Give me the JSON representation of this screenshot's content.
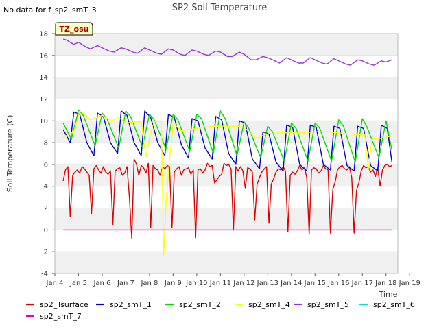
{
  "chart_data": {
    "type": "line",
    "title": "SP2 Soil Temperature",
    "no_data_note": "No data for f_sp2_smT_3",
    "badge": "TZ_osu",
    "xlabel": "Time",
    "ylabel": "Soil Temperature (C)",
    "xlim": [
      4.5,
      19
    ],
    "ylim": [
      -4,
      18
    ],
    "x_ticks": [
      {
        "v": 4.5,
        "label": "Jan 4"
      },
      {
        "v": 5.5,
        "label": "Jan 5"
      },
      {
        "v": 6.5,
        "label": "Jan 6"
      },
      {
        "v": 7.5,
        "label": "Jan 7"
      },
      {
        "v": 8.5,
        "label": "Jan 8"
      },
      {
        "v": 9.5,
        "label": "Jan 9"
      },
      {
        "v": 10.5,
        "label": "Jan 10"
      },
      {
        "v": 11.5,
        "label": "Jan 11"
      },
      {
        "v": 12.5,
        "label": "Jan 12"
      },
      {
        "v": 13.5,
        "label": "Jan 13"
      },
      {
        "v": 14.5,
        "label": "Jan 14"
      },
      {
        "v": 15.5,
        "label": "Jan 15"
      },
      {
        "v": 16.5,
        "label": "Jan 16"
      },
      {
        "v": 17.5,
        "label": "Jan 17"
      },
      {
        "v": 18.5,
        "label": "Jan 18"
      },
      {
        "v": 19.5,
        "label": "Jan 19"
      }
    ],
    "y_ticks": [
      -4,
      -2,
      0,
      2,
      4,
      6,
      8,
      10,
      12,
      14,
      16,
      18
    ],
    "grid": "horizontal bands",
    "legend_position": "bottom",
    "series": [
      {
        "name": "sp2_Tsurface",
        "color": "#dd0000",
        "x": [
          4.85,
          4.95,
          5.05,
          5.15,
          5.25,
          5.35,
          5.45,
          5.55,
          5.65,
          5.75,
          5.85,
          5.95,
          6.05,
          6.15,
          6.25,
          6.35,
          6.45,
          6.55,
          6.65,
          6.75,
          6.85,
          6.95,
          7.05,
          7.15,
          7.25,
          7.35,
          7.45,
          7.55,
          7.65,
          7.75,
          7.85,
          7.95,
          8.05,
          8.15,
          8.25,
          8.35,
          8.45,
          8.55,
          8.65,
          8.75,
          8.85,
          8.95,
          9.05,
          9.15,
          9.25,
          9.35,
          9.45,
          9.55,
          9.65,
          9.75,
          9.85,
          9.95,
          10.05,
          10.15,
          10.25,
          10.35,
          10.45,
          10.55,
          10.65,
          10.75,
          10.85,
          10.95,
          11.05,
          11.15,
          11.25,
          11.35,
          11.45,
          11.55,
          11.65,
          11.75,
          11.85,
          11.95,
          12.05,
          12.15,
          12.25,
          12.35,
          12.45,
          12.55,
          12.65,
          12.75,
          12.85,
          12.95,
          13.05,
          13.15,
          13.25,
          13.35,
          13.45,
          13.55,
          13.65,
          13.75,
          13.85,
          13.95,
          14.05,
          14.15,
          14.25,
          14.35,
          14.45,
          14.55,
          14.65,
          14.75,
          14.85,
          14.95,
          15.05,
          15.15,
          15.25,
          15.35,
          15.45,
          15.55,
          15.65,
          15.75,
          15.85,
          15.95,
          16.05,
          16.15,
          16.25,
          16.35,
          16.45,
          16.55,
          16.65,
          16.75,
          16.85,
          16.95,
          17.05,
          17.15,
          17.25,
          17.35,
          17.45,
          17.55,
          17.65,
          17.75,
          17.85,
          17.95,
          18.05,
          18.15,
          18.25,
          18.35,
          18.45,
          18.55,
          18.65,
          18.75
        ],
        "values": [
          4.5,
          5.5,
          5.8,
          1.2,
          5.0,
          5.3,
          5.5,
          5.2,
          5.8,
          5.6,
          5.3,
          5.0,
          1.5,
          5.6,
          5.9,
          5.5,
          5.2,
          5.8,
          5.3,
          5.1,
          5.4,
          0.5,
          5.4,
          5.6,
          5.7,
          5.0,
          5.2,
          5.8,
          3.0,
          -0.8,
          6.5,
          6.0,
          5.0,
          5.9,
          5.7,
          5.2,
          6.1,
          0.2,
          5.9,
          5.6,
          5.5,
          5.0,
          5.8,
          5.6,
          5.9,
          5.8,
          0.2,
          5.3,
          5.6,
          5.8,
          5.0,
          5.5,
          5.6,
          5.7,
          5.1,
          5.5,
          -0.7,
          5.5,
          5.6,
          5.2,
          5.5,
          6.1,
          5.8,
          5.9,
          4.3,
          4.6,
          4.9,
          5.1,
          6.1,
          5.9,
          6.0,
          5.6,
          0.0,
          5.8,
          5.4,
          5.8,
          5.4,
          3.8,
          5.7,
          5.6,
          5.3,
          0.9,
          4.2,
          4.8,
          5.3,
          5.6,
          5.8,
          0.6,
          4.2,
          4.7,
          5.3,
          5.6,
          5.5,
          5.8,
          5.4,
          -0.2,
          5.0,
          5.3,
          5.1,
          5.4,
          5.9,
          5.5,
          5.7,
          4.8,
          -0.4,
          5.5,
          5.7,
          5.6,
          5.2,
          5.4,
          5.9,
          5.6,
          5.5,
          -0.3,
          3.7,
          4.4,
          5.5,
          5.8,
          5.9,
          5.6,
          5.5,
          5.8,
          4.8,
          -0.3,
          3.6,
          4.3,
          5.4,
          5.9,
          5.7,
          5.8,
          5.3,
          5.5,
          4.9,
          5.7,
          4.0,
          5.5,
          5.9,
          6.0,
          5.8,
          5.9
        ]
      },
      {
        "name": "sp2_smT_1",
        "color": "#0000cc",
        "x": [
          4.85,
          5.15,
          5.3,
          5.55,
          5.85,
          6.15,
          6.3,
          6.55,
          6.85,
          7.15,
          7.3,
          7.55,
          7.85,
          8.15,
          8.3,
          8.55,
          8.85,
          9.15,
          9.3,
          9.55,
          9.85,
          10.15,
          10.3,
          10.55,
          10.85,
          11.15,
          11.3,
          11.55,
          11.85,
          12.15,
          12.3,
          12.55,
          12.85,
          13.15,
          13.3,
          13.55,
          13.85,
          14.15,
          14.3,
          14.55,
          14.85,
          15.15,
          15.3,
          15.55,
          15.85,
          16.15,
          16.3,
          16.55,
          16.85,
          17.15,
          17.3,
          17.55,
          17.85,
          18.15,
          18.3,
          18.55,
          18.75
        ],
        "values": [
          9.2,
          8.0,
          10.8,
          10.6,
          8.0,
          6.8,
          10.7,
          10.4,
          8.0,
          7.0,
          10.9,
          10.5,
          8.0,
          6.8,
          10.9,
          10.3,
          8.0,
          6.8,
          10.6,
          10.3,
          7.8,
          6.6,
          10.2,
          10.0,
          7.5,
          6.5,
          10.4,
          10.1,
          7.0,
          6.0,
          10.0,
          9.8,
          6.5,
          5.6,
          9.0,
          8.8,
          6.2,
          5.4,
          9.6,
          9.4,
          6.0,
          5.4,
          9.6,
          9.4,
          6.0,
          5.5,
          9.5,
          9.3,
          5.9,
          5.4,
          9.5,
          9.3,
          5.9,
          5.4,
          9.6,
          9.3,
          6.2
        ]
      },
      {
        "name": "sp2_smT_2",
        "color": "#00dd00",
        "x": [
          4.85,
          5.2,
          5.5,
          5.7,
          6.2,
          6.5,
          6.7,
          7.2,
          7.5,
          7.7,
          8.2,
          8.5,
          8.7,
          9.2,
          9.5,
          9.7,
          10.2,
          10.5,
          10.7,
          11.2,
          11.5,
          11.7,
          12.2,
          12.5,
          12.7,
          13.2,
          13.5,
          13.7,
          14.2,
          14.5,
          14.7,
          15.2,
          15.5,
          15.7,
          16.2,
          16.5,
          16.7,
          17.2,
          17.5,
          17.7,
          18.2,
          18.5,
          18.75
        ],
        "values": [
          9.8,
          8.3,
          11.0,
          10.5,
          7.7,
          10.7,
          10.2,
          7.5,
          10.9,
          10.4,
          7.6,
          10.6,
          10.1,
          7.4,
          10.6,
          10.1,
          7.2,
          10.6,
          10.2,
          7.0,
          10.9,
          10.2,
          6.8,
          9.9,
          9.3,
          6.6,
          9.5,
          9.0,
          6.3,
          9.8,
          9.3,
          6.3,
          9.8,
          9.3,
          6.3,
          10.1,
          9.5,
          6.2,
          10.2,
          9.4,
          6.6,
          10.0,
          7.3
        ]
      },
      {
        "name": "sp2_smT_4",
        "color": "#ffff00",
        "x": [
          4.85,
          5.3,
          5.55,
          5.8,
          6.0,
          6.5,
          6.9,
          7.2,
          7.5,
          7.9,
          8.15,
          8.35,
          8.55,
          8.7,
          9.0,
          9.1,
          9.2,
          9.35,
          9.5,
          9.6,
          9.8,
          10.2,
          10.8,
          11.3,
          11.8,
          12.2,
          12.5,
          13.0,
          13.5,
          14.0,
          15.0,
          15.5,
          16.0,
          16.5,
          17.0,
          17.3,
          17.6,
          17.75,
          17.9,
          18.3,
          18.5,
          18.75
        ],
        "values": [
          8.5,
          9.0,
          10.9,
          10.5,
          10.1,
          10.5,
          10.0,
          10.3,
          9.8,
          9.9,
          9.9,
          6.7,
          9.0,
          9.9,
          10.0,
          -2.4,
          2.5,
          6.5,
          9.7,
          9.6,
          9.1,
          9.2,
          9.4,
          9.5,
          9.5,
          9.5,
          9.4,
          8.4,
          8.8,
          8.9,
          8.9,
          9.0,
          9.0,
          8.9,
          8.8,
          8.7,
          8.8,
          5.5,
          8.3,
          8.4,
          8.5,
          8.6
        ]
      },
      {
        "name": "sp2_smT_5",
        "color": "#9933dd",
        "x": [
          4.85,
          5.0,
          5.3,
          5.5,
          5.8,
          6.0,
          6.3,
          6.5,
          6.8,
          7.0,
          7.3,
          7.5,
          7.8,
          8.0,
          8.3,
          8.5,
          8.8,
          9.0,
          9.3,
          9.5,
          9.8,
          10.0,
          10.3,
          10.5,
          10.8,
          11.0,
          11.3,
          11.5,
          11.8,
          12.0,
          12.3,
          12.5,
          12.8,
          13.0,
          13.3,
          13.5,
          13.8,
          14.0,
          14.3,
          14.5,
          14.8,
          15.0,
          15.3,
          15.5,
          15.8,
          16.0,
          16.3,
          16.5,
          16.8,
          17.0,
          17.3,
          17.5,
          17.8,
          18.0,
          18.3,
          18.5,
          18.75
        ],
        "values": [
          17.5,
          17.4,
          17.0,
          17.2,
          16.8,
          16.6,
          16.9,
          16.7,
          16.4,
          16.3,
          16.7,
          16.6,
          16.3,
          16.2,
          16.7,
          16.5,
          16.2,
          16.1,
          16.6,
          16.5,
          16.1,
          16.0,
          16.5,
          16.4,
          16.1,
          16.0,
          16.4,
          16.3,
          15.9,
          15.9,
          16.3,
          16.1,
          15.6,
          15.6,
          15.9,
          15.8,
          15.5,
          15.3,
          15.8,
          15.6,
          15.3,
          15.3,
          15.8,
          15.6,
          15.3,
          15.2,
          15.7,
          15.5,
          15.2,
          15.1,
          15.6,
          15.5,
          15.2,
          15.1,
          15.5,
          15.4,
          15.6
        ]
      },
      {
        "name": "sp2_smT_6",
        "color": "#00dddd",
        "x": [],
        "values": []
      },
      {
        "name": "sp2_smT_7",
        "color": "#dd00dd",
        "x": [
          4.85,
          18.75
        ],
        "values": [
          0.0,
          0.0
        ]
      }
    ]
  }
}
